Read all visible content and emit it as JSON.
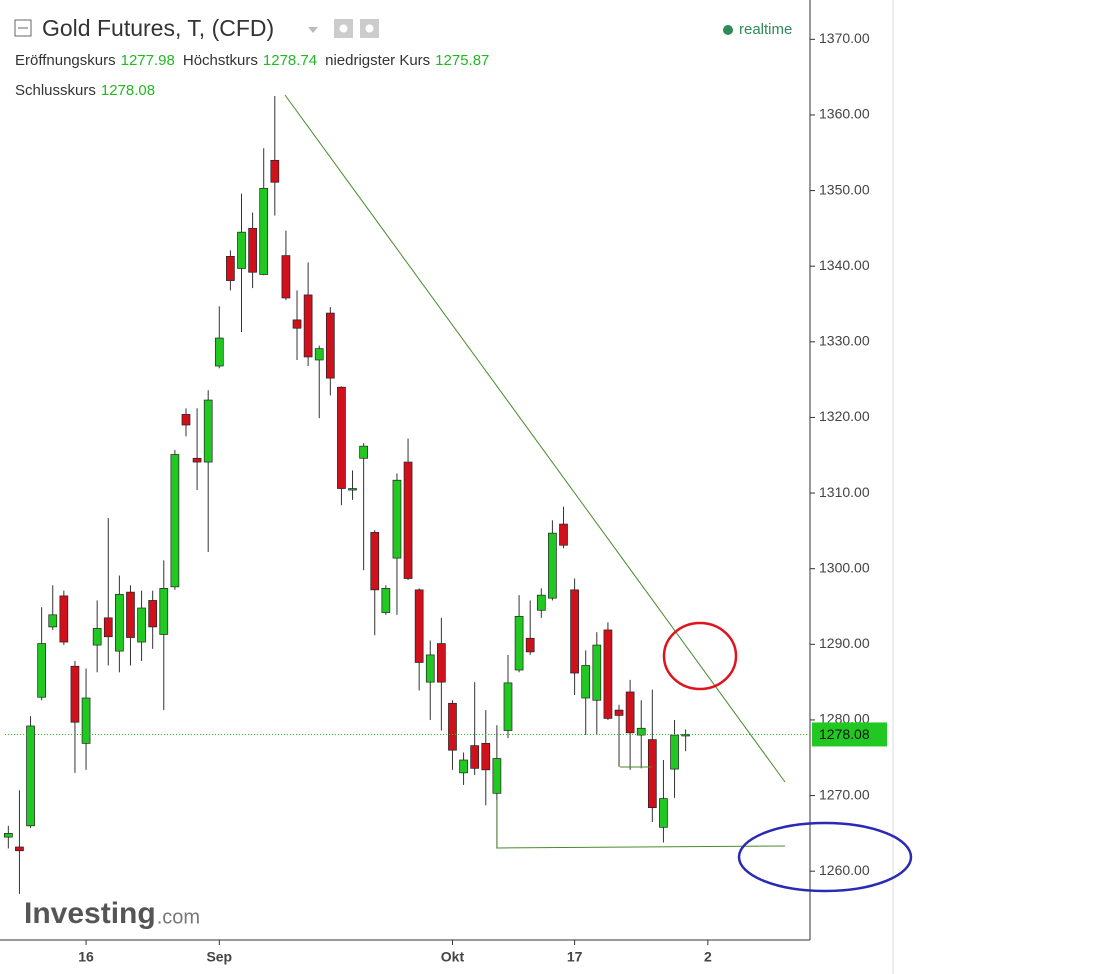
{
  "chart_data": {
    "type": "candlestick",
    "title": "Gold Futures, T, (CFD)",
    "status": "realtime",
    "labels": {
      "open": "Eröffnungskurs",
      "high": "Höchstkurs",
      "low": "niedrigster Kurs",
      "close": "Schlusskurs"
    },
    "logo_brand": "Investing",
    "logo_domain": ".com",
    "up_color": "#22c822",
    "down_color": "#d0111b",
    "open": [
      1264.5,
      1263.2,
      1266,
      1283,
      1292.3,
      1296.4,
      1287.1,
      1276.9,
      1289.9,
      1293.5,
      1289.1,
      1296.9,
      1290.3,
      1295.8,
      1291.3,
      1297.6,
      1320.4,
      1314.6,
      1314.1,
      1326.8,
      1341.3,
      1339.7,
      1345,
      1338.9,
      1354,
      1341.4,
      1332.9,
      1336.2,
      1327.6,
      1333.8,
      1324,
      1310.4,
      1314.6,
      1304.8,
      1294.2,
      1301.4,
      1314.1,
      1297.2,
      1285,
      1290.1,
      1282.2,
      1273,
      1276.6,
      1276.9,
      1270.3,
      1278.6,
      1286.6,
      1290.8,
      1294.5,
      1296.1,
      1305.9,
      1297.2,
      1282.9,
      1282.6,
      1291.9,
      1281.3,
      1283.7,
      1278,
      1277.4,
      1265.8,
      1273.5,
      1277.98
    ],
    "high": [
      1266,
      1270.7,
      1280.5,
      1294.9,
      1297.8,
      1297.1,
      1287.8,
      1286.8,
      1295.8,
      1306.7,
      1299.1,
      1297.8,
      1297.1,
      1297.1,
      1301.1,
      1315.7,
      1321.2,
      1321.2,
      1323.6,
      1334.7,
      1342.1,
      1349.6,
      1347.1,
      1355.6,
      1362.5,
      1344.7,
      1336.8,
      1340.5,
      1329.5,
      1334.6,
      1324.1,
      1313,
      1316.6,
      1305.1,
      1297.8,
      1312.6,
      1317.2,
      1297.4,
      1290.5,
      1293.5,
      1282.6,
      1275.7,
      1285,
      1281.3,
      1279.3,
      1288.6,
      1296.5,
      1295.8,
      1297.4,
      1306.4,
      1308.2,
      1298.7,
      1289.2,
      1291.6,
      1292.9,
      1282,
      1285.3,
      1282.6,
      1284,
      1274.7,
      1280,
      1278.74
    ],
    "low": [
      1263,
      1257,
      1265.7,
      1282.6,
      1291.9,
      1289.9,
      1273,
      1273.4,
      1286.3,
      1287.2,
      1286.3,
      1287.2,
      1287.8,
      1289.4,
      1281.3,
      1297.2,
      1317.5,
      1310.4,
      1302.2,
      1326.5,
      1336.8,
      1331.3,
      1337.1,
      1338.8,
      1346.7,
      1335.5,
      1327.6,
      1326.8,
      1319.9,
      1322.9,
      1308.4,
      1309.1,
      1299.8,
      1291.2,
      1293.9,
      1293.9,
      1298.5,
      1283.9,
      1280,
      1278.6,
      1273.4,
      1271.4,
      1272.7,
      1268.7,
      1263,
      1277.6,
      1286.3,
      1288.6,
      1293.5,
      1295.8,
      1302.7,
      1283.3,
      1278,
      1278,
      1280,
      1273.8,
      1273.4,
      1273.6,
      1266.5,
      1263.8,
      1269.7,
      1275.87
    ],
    "close": [
      1265,
      1262.7,
      1279.2,
      1290.1,
      1293.9,
      1290.3,
      1279.7,
      1282.9,
      1292.1,
      1291,
      1296.6,
      1290.9,
      1294.8,
      1292.3,
      1297.4,
      1315.1,
      1319,
      1314.1,
      1322.3,
      1330.5,
      1338.1,
      1344.5,
      1339.2,
      1350.3,
      1351.1,
      1335.8,
      1331.8,
      1328,
      1329.1,
      1325.2,
      1310.6,
      1310.6,
      1316.2,
      1297.2,
      1297.4,
      1311.7,
      1298.7,
      1287.6,
      1288.6,
      1285,
      1276,
      1274.7,
      1273.6,
      1273.4,
      1274.9,
      1284.9,
      1293.7,
      1289,
      1296.5,
      1304.7,
      1303.1,
      1286.2,
      1287.2,
      1289.9,
      1280.2,
      1280.6,
      1278.3,
      1278.9,
      1268.4,
      1269.6,
      1278,
      1278.08
    ],
    "xlim": [
      -0.3,
      72.2
    ],
    "xticks": [
      {
        "value": 7,
        "label": "16"
      },
      {
        "value": 19,
        "label": "Sep"
      },
      {
        "value": 40,
        "label": "Okt"
      },
      {
        "value": 51,
        "label": "17"
      },
      {
        "value": 63,
        "label": "2"
      }
    ],
    "ylim": [
      1250.9,
      1375.2
    ],
    "yticks": [
      {
        "value": 1260,
        "label": "1260.00"
      },
      {
        "value": 1270,
        "label": "1270.00"
      },
      {
        "value": 1280,
        "label": "1280.00"
      },
      {
        "value": 1290,
        "label": "1290.00"
      },
      {
        "value": 1300,
        "label": "1300.00"
      },
      {
        "value": 1310,
        "label": "1310.00"
      },
      {
        "value": 1320,
        "label": "1320.00"
      },
      {
        "value": 1330,
        "label": "1330.00"
      },
      {
        "value": 1340,
        "label": "1340.00"
      },
      {
        "value": 1350,
        "label": "1350.00"
      },
      {
        "value": 1360,
        "label": "1360.00"
      },
      {
        "value": 1370,
        "label": "1370.00"
      }
    ],
    "grid": false
  }
}
